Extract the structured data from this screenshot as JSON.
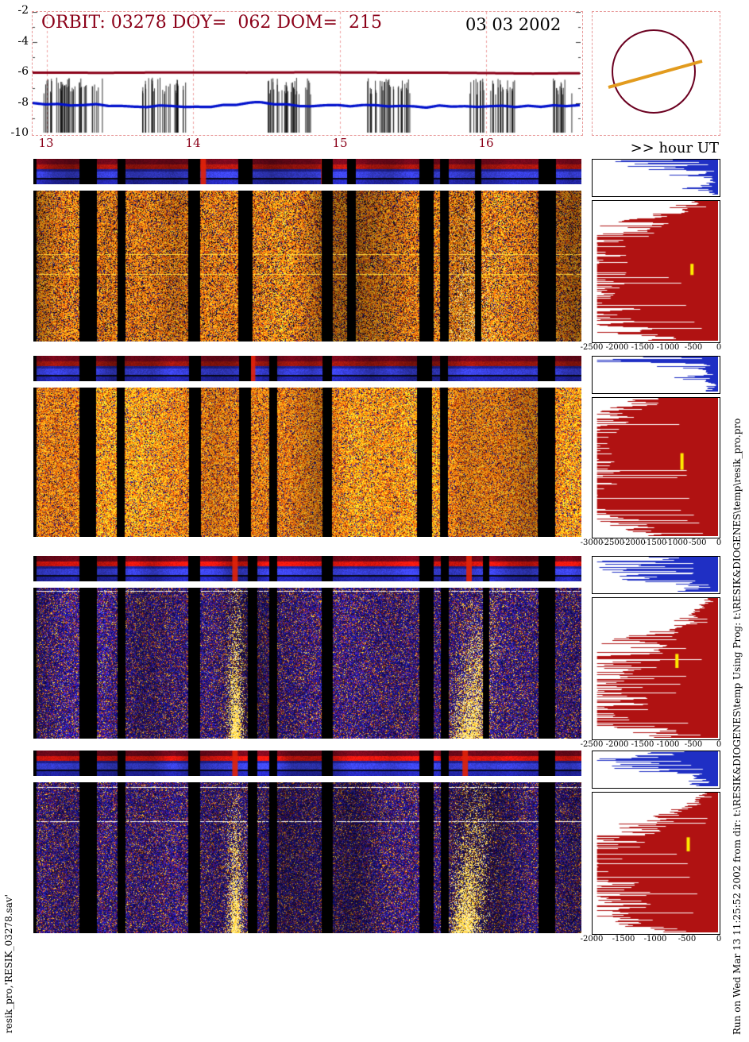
{
  "header": {
    "title": "ORBIT: 03278 DOY=  062 DOM=  215",
    "date": "03 03 2002",
    "hour_axis_label": ">> hour UT"
  },
  "timeline": {
    "y_ticks": [
      "-2",
      "-4",
      "-6",
      "-8",
      "-10"
    ],
    "hour_ticks": [
      "13",
      "14",
      "15",
      "16"
    ],
    "hour_positions": [
      0.026,
      0.293,
      0.561,
      0.827
    ],
    "red_frac": 0.5,
    "blue_frac": 0.77,
    "burst_clusters": [
      [
        0.02,
        0.13
      ],
      [
        0.2,
        0.28
      ],
      [
        0.42,
        0.51
      ],
      [
        0.605,
        0.69
      ],
      [
        0.795,
        0.88
      ],
      [
        0.947,
        0.985
      ]
    ]
  },
  "sun_panel": {
    "disk_color": "#6b0020",
    "slit_color": "#e29b1e"
  },
  "panels": [
    {
      "name": "band-1",
      "ticks": [
        "-2500",
        "-2000",
        "-1500",
        "-1000",
        "-500",
        "0"
      ],
      "kind": "warm",
      "dark": 0.13,
      "bright": 0.95,
      "gaps": [
        [
          0,
          0.006
        ],
        [
          0.084,
          0.116
        ],
        [
          0.154,
          0.168
        ],
        [
          0.283,
          0.305
        ],
        [
          0.374,
          0.4
        ],
        [
          0.526,
          0.546
        ],
        [
          0.572,
          0.588
        ],
        [
          0.704,
          0.73
        ],
        [
          0.742,
          0.758
        ],
        [
          0.806,
          0.818
        ],
        [
          0.922,
          0.954
        ]
      ],
      "strip_cols": [
        0.31,
        0.53
      ],
      "redband": 0.55,
      "features": [
        {
          "x": 0.8,
          "w": 0.04,
          "amp": 0.3
        }
      ],
      "hlines": [
        {
          "y": 0.42,
          "c": "y"
        },
        {
          "y": 0.55,
          "c": "y"
        }
      ],
      "blue_hist": {
        "base": 0.05,
        "jitter": 0.85,
        "notch": 0.05,
        "bumps": [
          [
            0.1,
            0.1,
            0.85
          ],
          [
            0.22,
            0.06,
            0.5
          ],
          [
            0.45,
            0.05,
            0.25
          ],
          [
            0.8,
            0.08,
            0.15
          ]
        ]
      },
      "red_hist": {
        "base": 0.12,
        "jitter": 0.4,
        "notch": 0.06,
        "bumps": [
          [
            0.25,
            0.18,
            0.6
          ],
          [
            0.5,
            0.2,
            0.85
          ],
          [
            0.72,
            0.15,
            0.75
          ],
          [
            0.92,
            0.1,
            0.5
          ]
        ],
        "marker": [
          0.78,
          0.45,
          0.08
        ]
      }
    },
    {
      "name": "band-2",
      "ticks": [
        "-3000",
        "-2500",
        "-2000",
        "-1500",
        "-1000",
        "-500",
        "0"
      ],
      "kind": "warm",
      "dark": 0.05,
      "bright": 1.1,
      "gaps": [
        [
          0,
          0.006
        ],
        [
          0.084,
          0.114
        ],
        [
          0.152,
          0.166
        ],
        [
          0.284,
          0.306
        ],
        [
          0.376,
          0.398
        ],
        [
          0.43,
          0.444
        ],
        [
          0.528,
          0.546
        ],
        [
          0.7,
          0.728
        ],
        [
          0.742,
          0.756
        ],
        [
          0.92,
          0.952
        ]
      ],
      "strip_cols": [
        0.4
      ],
      "redband": 0.45,
      "features": [],
      "hlines": [],
      "blue_hist": {
        "base": 0.05,
        "jitter": 0.85,
        "notch": 0.04,
        "bumps": [
          [
            0.08,
            0.08,
            0.9
          ],
          [
            0.3,
            0.05,
            0.3
          ],
          [
            0.6,
            0.06,
            0.2
          ]
        ]
      },
      "red_hist": {
        "base": 0.25,
        "jitter": 0.3,
        "notch": 0.04,
        "bumps": [
          [
            0.2,
            0.2,
            0.65
          ],
          [
            0.5,
            0.25,
            0.75
          ],
          [
            0.8,
            0.18,
            0.7
          ]
        ],
        "marker": [
          0.7,
          0.4,
          0.12
        ]
      }
    },
    {
      "name": "band-3",
      "ticks": [
        "-2500",
        "-2000",
        "-1500",
        "-1000",
        "-500",
        "0"
      ],
      "kind": "cold",
      "gaps": [
        [
          0,
          0.006
        ],
        [
          0.084,
          0.116
        ],
        [
          0.154,
          0.168
        ],
        [
          0.283,
          0.305
        ],
        [
          0.392,
          0.41
        ],
        [
          0.43,
          0.444
        ],
        [
          0.526,
          0.546
        ],
        [
          0.704,
          0.73
        ],
        [
          0.744,
          0.758
        ],
        [
          0.82,
          0.832
        ],
        [
          0.922,
          0.952
        ]
      ],
      "strip_cols": [
        0.368,
        0.795
      ],
      "redband": 0.95,
      "features": [
        {
          "x": 0.368,
          "w": 0.012,
          "amp": 1.0
        },
        {
          "x": 0.795,
          "w": 0.028,
          "amp": 0.85,
          "slant": 0.03
        }
      ],
      "hlines": [
        {
          "y": 0.02,
          "c": "w"
        }
      ],
      "blue_hist": {
        "base": 0.18,
        "jitter": 0.8,
        "notch": 0.03,
        "bumps": [
          [
            0.15,
            0.12,
            0.7
          ],
          [
            0.35,
            0.1,
            0.45
          ],
          [
            0.6,
            0.15,
            0.3
          ]
        ]
      },
      "red_hist": {
        "base": 0.08,
        "jitter": 0.45,
        "notch": 0.05,
        "bumps": [
          [
            0.35,
            0.18,
            0.5
          ],
          [
            0.62,
            0.2,
            0.75
          ],
          [
            0.85,
            0.15,
            0.65
          ]
        ],
        "marker": [
          0.66,
          0.4,
          0.1
        ]
      }
    },
    {
      "name": "band-4",
      "ticks": [
        "-2000",
        "-1500",
        "-1000",
        "-500",
        "0"
      ],
      "kind": "cold",
      "gaps": [
        [
          0,
          0.006
        ],
        [
          0.084,
          0.116
        ],
        [
          0.154,
          0.168
        ],
        [
          0.283,
          0.305
        ],
        [
          0.392,
          0.41
        ],
        [
          0.43,
          0.444
        ],
        [
          0.526,
          0.546
        ],
        [
          0.704,
          0.73
        ],
        [
          0.744,
          0.758
        ],
        [
          0.922,
          0.952
        ]
      ],
      "strip_cols": [
        0.368,
        0.788
      ],
      "redband": 0.9,
      "features": [
        {
          "x": 0.368,
          "w": 0.012,
          "amp": 1.0
        },
        {
          "x": 0.788,
          "w": 0.026,
          "amp": 0.9,
          "slant": 0.02
        }
      ],
      "hlines": [
        {
          "y": 0.03,
          "c": "w"
        },
        {
          "y": 0.26,
          "c": "w"
        }
      ],
      "blue_hist": {
        "base": 0.15,
        "jitter": 0.8,
        "notch": 0.03,
        "bumps": [
          [
            0.15,
            0.12,
            0.75
          ],
          [
            0.45,
            0.15,
            0.4
          ]
        ]
      },
      "red_hist": {
        "base": 0.08,
        "jitter": 0.4,
        "notch": 0.05,
        "bumps": [
          [
            0.35,
            0.2,
            0.7
          ],
          [
            0.62,
            0.22,
            0.8
          ],
          [
            0.88,
            0.12,
            0.55
          ]
        ],
        "marker": [
          0.75,
          0.32,
          0.1
        ]
      }
    }
  ],
  "footnotes": {
    "left": "resik_pro,'RESIK_03278.sav'",
    "right": "Run on Wed Mar 13 11:25:52 2002 from dir: t:\\RESIK&DIOGENES\\temp Using Prog: t:\\RESIK&DIOGENES\\temp\\resik_pro.pro"
  },
  "chart_data": [
    {
      "id": "orbit-overview-timeline",
      "type": "line",
      "title": "ORBIT: 03278 DOY= 062 DOM= 215",
      "date": "03 03 2002",
      "xlabel": "hour UT",
      "x_range": [
        12.9,
        16.65
      ],
      "xticks": [
        13,
        14,
        15,
        16
      ],
      "ylim": [
        -10,
        -2
      ],
      "yticks": [
        -2,
        -4,
        -6,
        -8,
        -10
      ],
      "grid": "dashed pink vertical line at each hour",
      "series": [
        {
          "name": "upper-level-curve",
          "color": "#8b0018",
          "style": "thick nearly-flat line",
          "approx_value": -6.0
        },
        {
          "name": "lower-level-curve",
          "color": "#0010cc",
          "style": "thick wavy line",
          "approx_value": -8.3
        },
        {
          "name": "event-bursts",
          "color": "#000000",
          "style": "dense clusters of vertical lines spanning about -6.5 to -10",
          "cluster_centers_hours": [
            13.2,
            13.85,
            14.65,
            15.35,
            16.05,
            16.55
          ]
        }
      ]
    },
    {
      "id": "spectrogram-band-1",
      "type": "heatmap",
      "x_range_hours": [
        12.9,
        16.65
      ],
      "palette": "black-blue-orange-yellow heat, mostly orange noise",
      "description": "dense orange speckle with vertical black telemetry gaps; thin blue/maroon context strip above; two faint yellow horizontal spectral lines",
      "profile_histogram": {
        "red_xlim": [
          -2500,
          0
        ],
        "xticks": [
          -2500,
          -2000,
          -1500,
          -1000,
          -500,
          0
        ],
        "yellow_marker": true
      }
    },
    {
      "id": "spectrogram-band-2",
      "type": "heatmap",
      "x_range_hours": [
        12.9,
        16.65
      ],
      "palette": "bright orange heat",
      "description": "brightest, most uniform orange band with vertical black telemetry gaps",
      "profile_histogram": {
        "red_xlim": [
          -3000,
          0
        ],
        "xticks": [
          -3000,
          -2500,
          -2000,
          -1500,
          -1000,
          -500,
          0
        ],
        "yellow_marker": true
      }
    },
    {
      "id": "spectrogram-band-3",
      "type": "heatmap",
      "x_range_hours": [
        12.9,
        16.65
      ],
      "palette": "dark blue/purple with sparse orange",
      "description": "faint blue-purple noise; bright yellow flare streaks near 14.1 UT and 15.9 UT",
      "profile_histogram": {
        "red_xlim": [
          -2500,
          0
        ],
        "xticks": [
          -2500,
          -2000,
          -1500,
          -1000,
          -500,
          0
        ],
        "yellow_marker": true
      }
    },
    {
      "id": "spectrogram-band-4",
      "type": "heatmap",
      "x_range_hours": [
        12.9,
        16.65
      ],
      "palette": "dark blue/purple with sparse orange",
      "description": "faint blue-purple noise; bright yellow flare streaks near 14.1 UT and 15.9 UT",
      "profile_histogram": {
        "red_xlim": [
          -2000,
          0
        ],
        "xticks": [
          -2000,
          -1500,
          -1000,
          -500,
          0
        ],
        "yellow_marker": true
      }
    }
  ]
}
